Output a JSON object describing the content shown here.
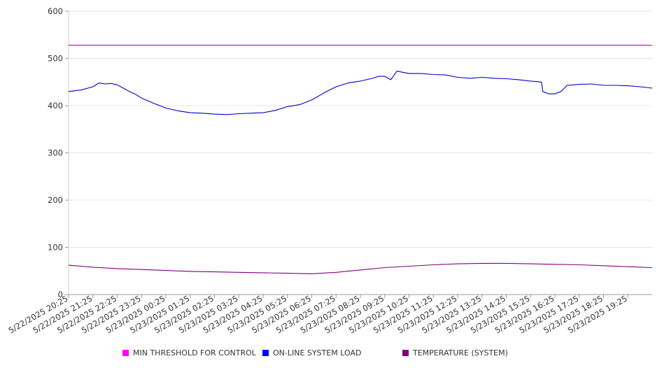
{
  "chart_data": {
    "type": "line",
    "ylim": [
      0,
      600
    ],
    "yticks": [
      "0",
      "100",
      "200",
      "300",
      "400",
      "500",
      "600"
    ],
    "grid": true,
    "legend_position": "bottom",
    "xticks": [
      "5/22/2025 20:25",
      "5/22/2025 21:25",
      "5/22/2025 22:25",
      "5/22/2025 23:25",
      "5/23/2025 00:25",
      "5/23/2025 01:25",
      "5/23/2025 02:25",
      "5/23/2025 03:25",
      "5/23/2025 04:25",
      "5/23/2025 05:25",
      "5/23/2025 06:25",
      "5/23/2025 07:25",
      "5/23/2025 08:25",
      "5/23/2025 09:25",
      "5/23/2025 10:25",
      "5/23/2025 11:25",
      "5/23/2025 12:25",
      "5/23/2025 13:25",
      "5/23/2025 14:25",
      "5/23/2025 15:25",
      "5/23/2025 16:25",
      "5/23/2025 17:25",
      "5/23/2025 18:25",
      "5/23/2025 19:25"
    ],
    "x_start": "5/22/2025 20:25",
    "x_end": "5/23/2025 20:25",
    "series": [
      {
        "name": "MIN THRESHOLD FOR CONTROL",
        "color": "#c000c0",
        "x_hours": [
          0,
          24
        ],
        "values": [
          528,
          528
        ]
      },
      {
        "name": "ON-LINE SYSTEM LOAD",
        "color": "#0000cc",
        "x_hours": [
          0,
          0.5,
          1.0,
          1.25,
          1.5,
          1.75,
          2.0,
          2.25,
          2.5,
          2.75,
          3.0,
          3.5,
          4.0,
          4.5,
          5.0,
          5.5,
          6.0,
          6.5,
          7.0,
          7.5,
          8.0,
          8.5,
          9.0,
          9.5,
          10.0,
          10.5,
          11.0,
          11.5,
          12.0,
          12.5,
          12.75,
          13.0,
          13.25,
          13.5,
          14.0,
          14.5,
          15.0,
          15.5,
          16.0,
          16.5,
          17.0,
          17.5,
          18.0,
          18.5,
          19.0,
          19.45,
          19.5,
          19.75,
          20.0,
          20.25,
          20.5,
          21.0,
          21.5,
          22.0,
          22.5,
          23.0,
          23.5,
          24.0
        ],
        "values": [
          430,
          433,
          440,
          448,
          446,
          447,
          444,
          437,
          430,
          424,
          416,
          405,
          395,
          389,
          385,
          384,
          382,
          381,
          383,
          384,
          385,
          390,
          398,
          402,
          412,
          427,
          440,
          448,
          452,
          458,
          462,
          462,
          455,
          473,
          468,
          468,
          466,
          465,
          460,
          458,
          460,
          458,
          457,
          455,
          452,
          450,
          430,
          425,
          425,
          430,
          443,
          445,
          446,
          443,
          443,
          442,
          440,
          437
        ]
      },
      {
        "name": "TEMPERATURE (SYSTEM)",
        "color": "#800080",
        "x_hours": [
          0,
          1,
          2,
          3,
          4,
          5,
          6,
          7,
          8,
          9,
          10,
          11,
          12,
          13,
          14,
          15,
          16,
          17,
          18,
          19,
          20,
          21,
          22,
          23,
          24
        ],
        "values": [
          62,
          58,
          55,
          53,
          51,
          49,
          48,
          47,
          46,
          45,
          44,
          47,
          52,
          57,
          60,
          63,
          65,
          66,
          66,
          65,
          64,
          63,
          61,
          59,
          57
        ]
      }
    ]
  }
}
